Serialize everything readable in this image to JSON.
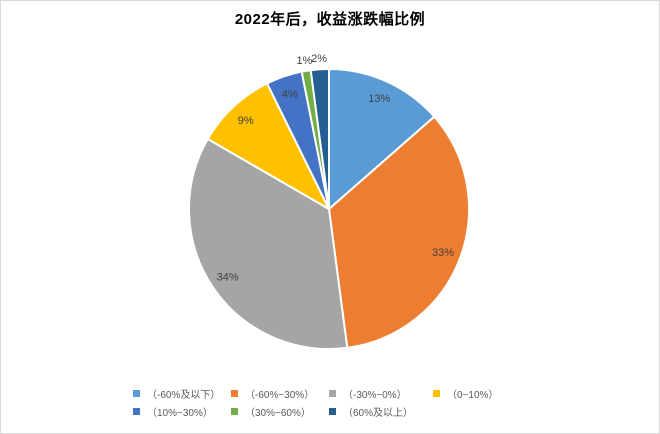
{
  "window": {
    "background": "#FFFFFF",
    "border_color": "#D9D9D9"
  },
  "chart_data": {
    "type": "pie",
    "title": "2022年后，收益涨跌幅比例",
    "categories": [
      "（-60%及以下）",
      "（-60%~30%）",
      "（-30%~0%）",
      "（0~10%）",
      "（10%~30%）",
      "（30%~60%）",
      "（60%及以上）"
    ],
    "values": [
      13,
      33,
      34,
      9,
      4,
      1,
      2
    ],
    "labels": [
      "13%",
      "33%",
      "34%",
      "9%",
      "4%",
      "1%",
      "2%"
    ],
    "colors": [
      "#5B9BD5",
      "#ED7D31",
      "#A5A5A5",
      "#FFC000",
      "#4472C4",
      "#70AD47",
      "#255E91"
    ],
    "start_angle_deg": 0,
    "direction": "clockwise",
    "slice_border_color": "#FFFFFF",
    "label_color": "#404040",
    "legend_position": "bottom",
    "legend_rows": [
      4,
      3
    ],
    "legend_text_color": "#595959"
  }
}
